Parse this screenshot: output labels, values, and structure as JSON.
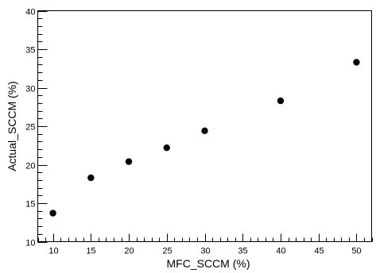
{
  "chart_data": {
    "type": "scatter",
    "xlabel": "MFC_SCCM (%)",
    "ylabel": "Actual_SCCM (%)",
    "xlim": [
      8,
      52
    ],
    "ylim": [
      10,
      40
    ],
    "x_ticks": [
      10,
      15,
      20,
      25,
      30,
      35,
      40,
      45,
      50
    ],
    "y_ticks": [
      10,
      15,
      20,
      25,
      30,
      35,
      40
    ],
    "grid": false,
    "marker_color": "#000000",
    "series": [
      {
        "x": [
          10,
          15,
          20,
          25,
          30,
          40,
          50
        ],
        "y": [
          13.7,
          18.3,
          20.4,
          22.2,
          24.4,
          28.3,
          33.3
        ]
      }
    ]
  }
}
